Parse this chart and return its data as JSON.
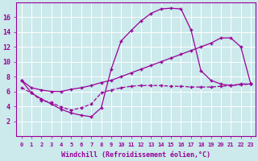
{
  "xlabel": "Windchill (Refroidissement éolien,°C)",
  "ylabel": "",
  "bg_color": "#cce9ec",
  "line_color": "#990099",
  "grid_color": "#ffffff",
  "xlim": [
    -0.5,
    23.5
  ],
  "ylim": [
    0,
    18
  ],
  "xticks": [
    0,
    1,
    2,
    3,
    4,
    5,
    6,
    7,
    8,
    9,
    10,
    11,
    12,
    13,
    14,
    15,
    16,
    17,
    18,
    19,
    20,
    21,
    22,
    23
  ],
  "yticks": [
    2,
    4,
    6,
    8,
    10,
    12,
    14,
    16
  ],
  "curve1_x": [
    0,
    1,
    2,
    3,
    4,
    5,
    6,
    7,
    8,
    9,
    10,
    11,
    12,
    13,
    14,
    15,
    16,
    17,
    18,
    19,
    20,
    21,
    22,
    23
  ],
  "curve1_y": [
    7.5,
    5.8,
    5.0,
    4.3,
    3.6,
    3.1,
    2.8,
    2.6,
    3.8,
    9.0,
    12.8,
    14.2,
    15.5,
    16.5,
    17.1,
    17.2,
    17.1,
    14.3,
    8.8,
    7.5,
    7.0,
    6.8,
    7.0,
    7.0
  ],
  "curve2_x": [
    0,
    1,
    2,
    3,
    4,
    5,
    6,
    7,
    8,
    9,
    10,
    11,
    12,
    13,
    14,
    15,
    16,
    17,
    18,
    19,
    20,
    21,
    22,
    23
  ],
  "curve2_y": [
    7.5,
    6.5,
    6.2,
    6.0,
    6.0,
    6.3,
    6.5,
    6.8,
    7.2,
    7.5,
    8.0,
    8.5,
    9.0,
    9.5,
    10.0,
    10.5,
    11.0,
    11.5,
    12.0,
    12.5,
    13.2,
    13.2,
    12.0,
    7.0
  ],
  "curve3_x": [
    0,
    1,
    2,
    3,
    4,
    5,
    6,
    7,
    8,
    9,
    10,
    11,
    12,
    13,
    14,
    15,
    16,
    17,
    18,
    19,
    20,
    21,
    22,
    23
  ],
  "curve3_y": [
    6.5,
    5.8,
    4.8,
    4.5,
    3.9,
    3.5,
    3.8,
    4.3,
    5.8,
    6.2,
    6.5,
    6.7,
    6.8,
    6.8,
    6.8,
    6.7,
    6.7,
    6.6,
    6.6,
    6.6,
    6.7,
    6.8,
    6.9,
    7.0
  ]
}
